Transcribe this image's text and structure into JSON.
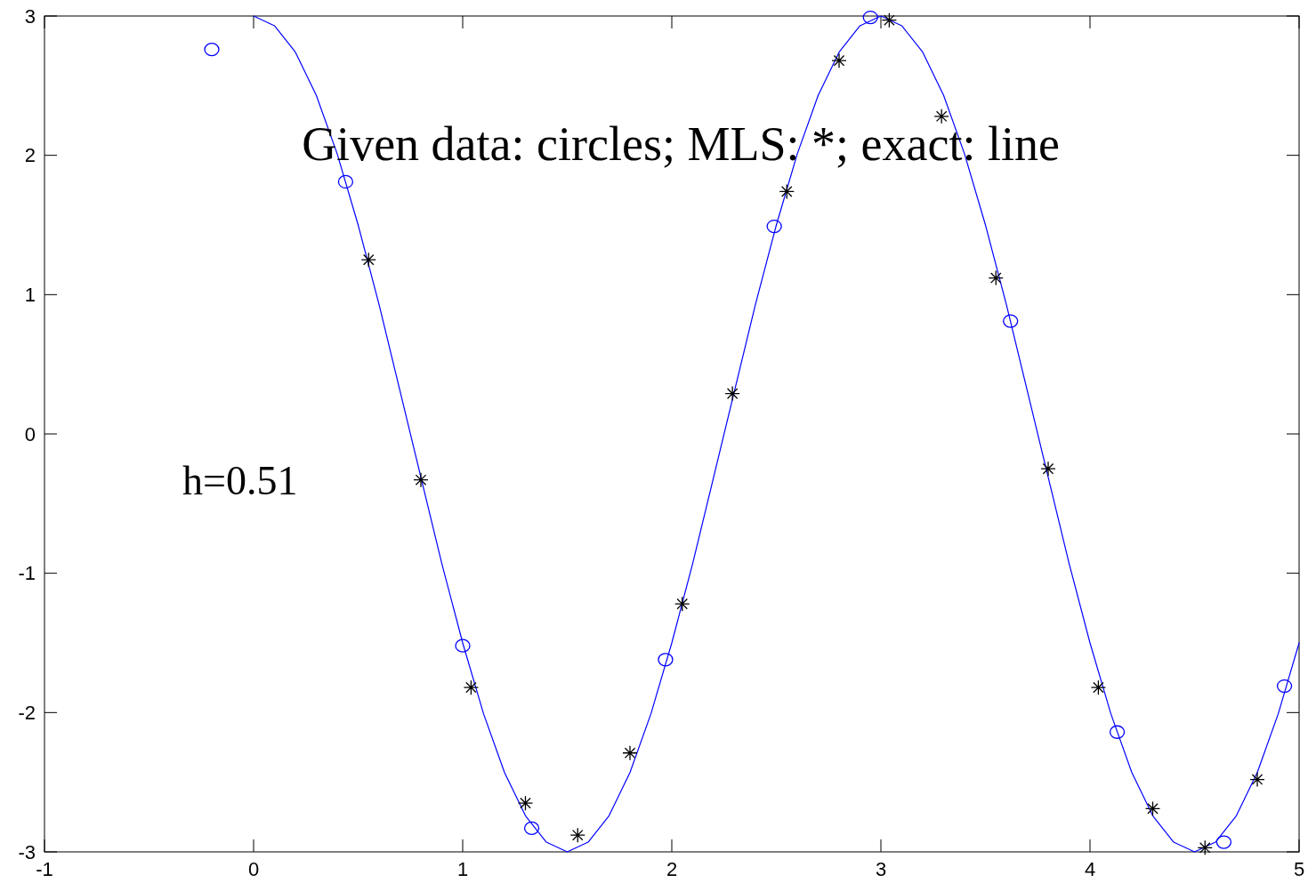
{
  "chart_data": {
    "type": "scatter",
    "xlim": [
      -1,
      5
    ],
    "ylim": [
      -3,
      3
    ],
    "xticks": [
      -1,
      0,
      1,
      2,
      3,
      4,
      5
    ],
    "yticks": [
      -3,
      -2,
      -1,
      0,
      1,
      2,
      3
    ],
    "grid": false,
    "annotations": [
      "Given data: circles; MLS: *; exact: line",
      "h=0.51"
    ],
    "series": [
      {
        "type": "line",
        "color": "#0000ff",
        "marker": "none",
        "line_style": "solid",
        "x": [
          0,
          0.1,
          0.2,
          0.3,
          0.4,
          0.5,
          0.6,
          0.7,
          0.8,
          0.9,
          1,
          1.1,
          1.2,
          1.3,
          1.4,
          1.5,
          1.6,
          1.7,
          1.8,
          1.9,
          2,
          2.1,
          2.2,
          2.3,
          2.4,
          2.5,
          2.6,
          2.7,
          2.8,
          2.9,
          3,
          3.1,
          3.2,
          3.3,
          3.4,
          3.5,
          3.6,
          3.7,
          3.8,
          3.9,
          4,
          4.1,
          4.2,
          4.3,
          4.4,
          4.5,
          4.6,
          4.7,
          4.8,
          4.9,
          5
        ],
        "values": [
          3,
          2.93,
          2.74,
          2.43,
          2.01,
          1.5,
          0.93,
          0.31,
          -0.31,
          -0.93,
          -1.5,
          -2.01,
          -2.43,
          -2.74,
          -2.93,
          -3,
          -2.93,
          -2.74,
          -2.43,
          -2.01,
          -1.5,
          -0.93,
          -0.31,
          0.31,
          0.93,
          1.5,
          2.01,
          2.43,
          2.74,
          2.93,
          3,
          2.93,
          2.74,
          2.43,
          2.01,
          1.5,
          0.93,
          0.31,
          -0.31,
          -0.93,
          -1.5,
          -2.01,
          -2.43,
          -2.74,
          -2.93,
          -3,
          -2.93,
          -2.74,
          -2.43,
          -2.01,
          -1.5
        ]
      },
      {
        "color": "#0000ff",
        "marker": "circle",
        "x": [
          -0.2,
          0.44,
          1.0,
          1.33,
          1.97,
          2.49,
          2.95,
          3.62,
          4.13,
          4.64,
          4.93
        ],
        "values": [
          2.76,
          1.81,
          -1.52,
          -2.83,
          -1.62,
          1.49,
          2.99,
          0.81,
          -2.14,
          -2.93,
          -1.81
        ]
      },
      {
        "color": "#000000",
        "marker": "cross",
        "x": [
          0.55,
          0.8,
          1.04,
          1.3,
          1.55,
          1.8,
          2.05,
          2.29,
          2.55,
          2.8,
          3.04,
          3.29,
          3.55,
          3.8,
          4.04,
          4.3,
          4.55,
          4.8
        ],
        "values": [
          1.25,
          -0.33,
          -1.82,
          -2.65,
          -2.88,
          -2.29,
          -1.22,
          0.29,
          1.74,
          2.68,
          2.97,
          2.28,
          1.12,
          -0.25,
          -1.82,
          -2.69,
          -2.97,
          -2.48
        ]
      }
    ]
  }
}
